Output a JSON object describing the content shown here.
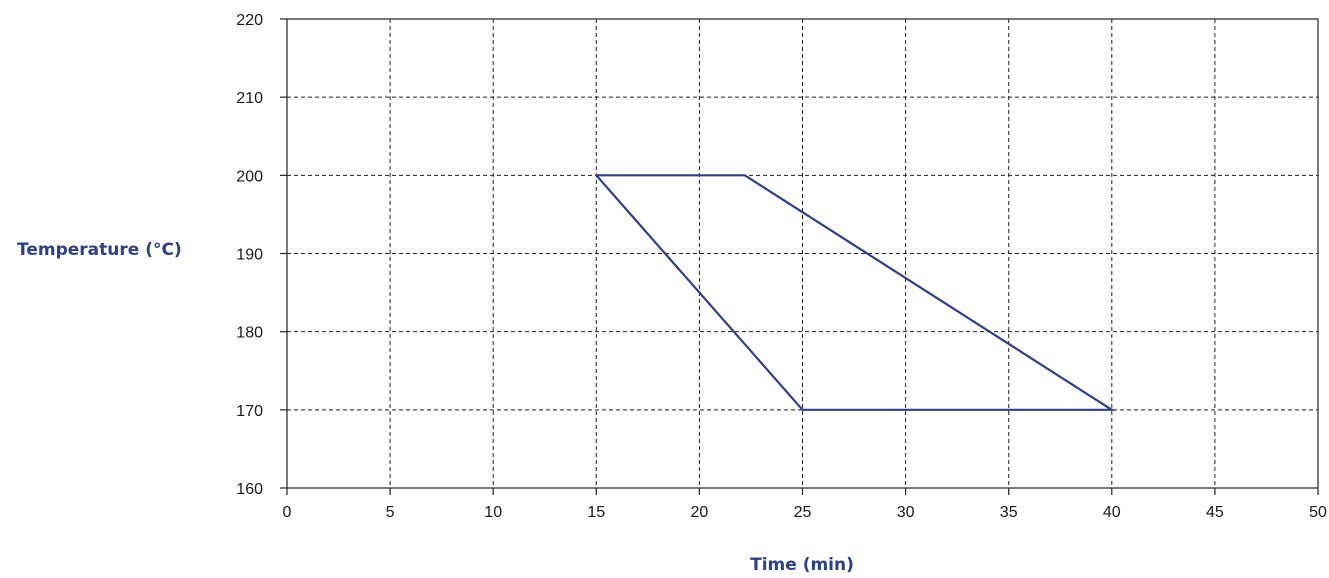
{
  "chart_data": {
    "type": "line",
    "xlabel": "Time (min)",
    "ylabel": "Temperature (°C)",
    "xlim": [
      0,
      50
    ],
    "ylim": [
      160,
      220
    ],
    "x_ticks": [
      0,
      5,
      10,
      15,
      20,
      25,
      30,
      35,
      40,
      45,
      50
    ],
    "y_ticks": [
      160,
      170,
      180,
      190,
      200,
      210,
      220
    ],
    "grid": true,
    "series": [
      {
        "points": [
          {
            "x": 15,
            "y": 200
          },
          {
            "x": 22.2,
            "y": 200
          },
          {
            "x": 40,
            "y": 170
          },
          {
            "x": 25,
            "y": 170
          },
          {
            "x": 15,
            "y": 200
          }
        ]
      }
    ],
    "colors": {
      "line": "#2b3f8f",
      "axis_title": "#2b3f8f",
      "grid": "#222222"
    }
  }
}
